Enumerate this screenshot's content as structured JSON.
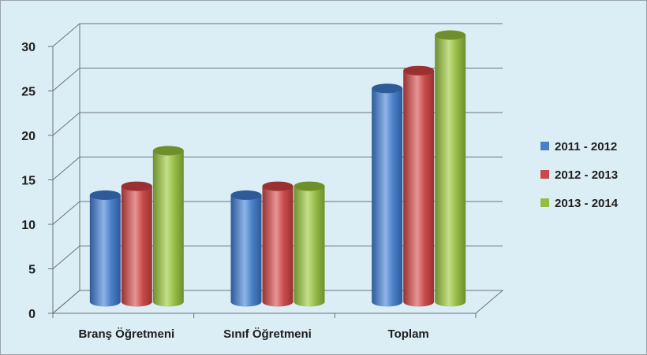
{
  "chart_data": {
    "type": "bar",
    "categories": [
      "Branş Öğretmeni",
      "Sınıf Öğretmeni",
      "Toplam"
    ],
    "series": [
      {
        "name": "2011 - 2012",
        "values": [
          12,
          12,
          24
        ]
      },
      {
        "name": "2012 - 2013",
        "values": [
          13,
          13,
          26
        ]
      },
      {
        "name": "2013 - 2014",
        "values": [
          17,
          13,
          30
        ]
      }
    ],
    "yticks": [
      0,
      5,
      10,
      15,
      20,
      25,
      30
    ],
    "ylim": [
      0,
      30
    ],
    "grid": true,
    "legend_position": "right",
    "colors": {
      "series": [
        "#4a7ec6",
        "#c84a4a",
        "#96bc46"
      ],
      "series_dark": [
        "#2d5a99",
        "#9a3030",
        "#6e8f2c"
      ],
      "series_light": [
        "#8db4e8",
        "#e89494",
        "#c4df88"
      ],
      "grid": "#6b7478",
      "background": "#dbeef5"
    },
    "style": "3d-cylinder"
  }
}
